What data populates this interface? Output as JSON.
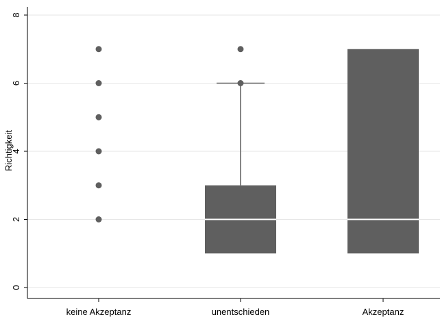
{
  "chart_data": {
    "type": "box",
    "ylabel": "Richtigkeit",
    "xlabel": "",
    "ylim": [
      0,
      8
    ],
    "yticks": [
      "0",
      "2",
      "4",
      "6",
      "8"
    ],
    "grid": true,
    "box_color": "#5f5f5f",
    "median_color": "#ffffff",
    "categories": [
      "keine Akzeptanz",
      "unentschieden",
      "Akzeptanz"
    ],
    "boxes": [
      {
        "category": "keine Akzeptanz",
        "q1": 2,
        "median": 2,
        "q3": 2,
        "whisker_low": 2,
        "whisker_high": 2,
        "outliers": [
          3,
          4,
          5,
          6,
          7
        ]
      },
      {
        "category": "unentschieden",
        "q1": 1,
        "median": 2,
        "q3": 3,
        "whisker_low": 1,
        "whisker_high": 6,
        "outliers": [
          6,
          7
        ]
      },
      {
        "category": "Akzeptanz",
        "q1": 1,
        "median": 2,
        "q3": 7,
        "whisker_low": 1,
        "whisker_high": 7,
        "outliers": []
      }
    ]
  }
}
